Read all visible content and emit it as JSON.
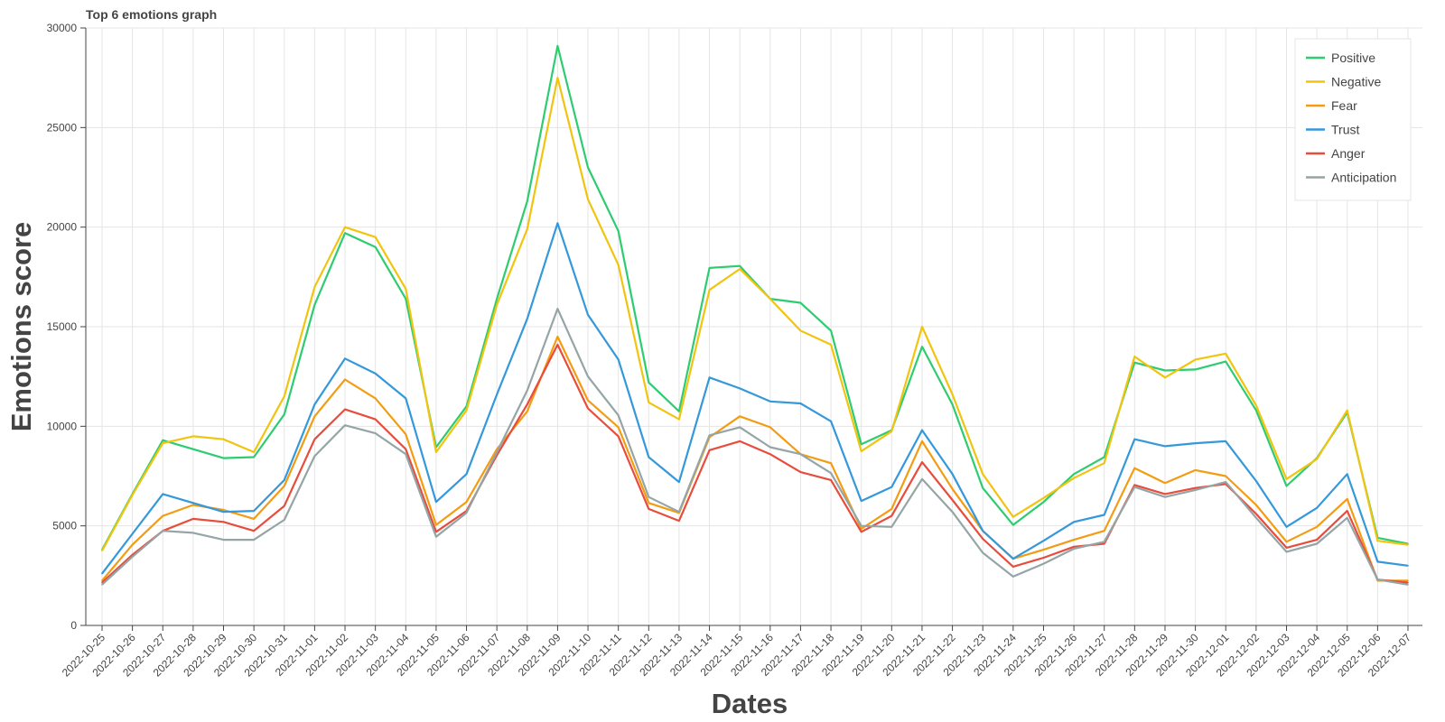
{
  "chart_data": {
    "type": "line",
    "title": "Top 6 emotions graph",
    "xlabel": "Dates",
    "ylabel": "Emotions score",
    "ylim": [
      0,
      30000
    ],
    "yticks": [
      0,
      5000,
      10000,
      15000,
      20000,
      25000,
      30000
    ],
    "grid": true,
    "legend_position": "top-right",
    "x": [
      "2022-10-25",
      "2022-10-26",
      "2022-10-27",
      "2022-10-28",
      "2022-10-29",
      "2022-10-30",
      "2022-10-31",
      "2022-11-01",
      "2022-11-02",
      "2022-11-03",
      "2022-11-04",
      "2022-11-05",
      "2022-11-06",
      "2022-11-07",
      "2022-11-08",
      "2022-11-09",
      "2022-11-10",
      "2022-11-11",
      "2022-11-12",
      "2022-11-13",
      "2022-11-14",
      "2022-11-15",
      "2022-11-16",
      "2022-11-17",
      "2022-11-18",
      "2022-11-19",
      "2022-11-20",
      "2022-11-21",
      "2022-11-22",
      "2022-11-23",
      "2022-11-24",
      "2022-11-25",
      "2022-11-26",
      "2022-11-27",
      "2022-11-28",
      "2022-11-29",
      "2022-11-30",
      "2022-12-01",
      "2022-12-02",
      "2022-12-03",
      "2022-12-04",
      "2022-12-05",
      "2022-12-06",
      "2022-12-07"
    ],
    "series": [
      {
        "name": "Positive",
        "color": "#2ecc71",
        "values": [
          3800,
          6600,
          9300,
          8850,
          8400,
          8450,
          10600,
          16100,
          19700,
          19000,
          16400,
          8950,
          11000,
          16400,
          21300,
          29100,
          23000,
          19800,
          12200,
          10750,
          17950,
          18050,
          16400,
          16200,
          14800,
          9100,
          9800,
          14000,
          11100,
          6900,
          5050,
          6200,
          7600,
          8450,
          13200,
          12800,
          12850,
          13250,
          10800,
          7000,
          8400,
          10700,
          4400,
          4100
        ]
      },
      {
        "name": "Negative",
        "color": "#f1c40f",
        "values": [
          3750,
          6550,
          9150,
          9500,
          9350,
          8700,
          11500,
          17000,
          20000,
          19500,
          16900,
          8700,
          10800,
          16100,
          19900,
          27500,
          21400,
          18100,
          11200,
          10350,
          16850,
          17900,
          16400,
          14800,
          14100,
          8750,
          9750,
          15000,
          11600,
          7600,
          5450,
          6400,
          7400,
          8150,
          13500,
          12450,
          13350,
          13650,
          11050,
          7350,
          8350,
          10800,
          4250,
          4050
        ]
      },
      {
        "name": "Fear",
        "color": "#f39c12",
        "values": [
          2250,
          4050,
          5500,
          6050,
          5800,
          5350,
          7000,
          10500,
          12350,
          11400,
          9600,
          5050,
          6200,
          8850,
          10750,
          14500,
          11300,
          9950,
          6150,
          5650,
          9450,
          10500,
          9950,
          8600,
          8150,
          4850,
          5850,
          9250,
          6850,
          4750,
          3350,
          3800,
          4300,
          4750,
          7900,
          7150,
          7800,
          7500,
          6050,
          4200,
          4950,
          6350,
          2250,
          2250
        ]
      },
      {
        "name": "Trust",
        "color": "#3498db",
        "values": [
          2600,
          4600,
          6600,
          6150,
          5700,
          5750,
          7300,
          11100,
          13400,
          12650,
          11400,
          6200,
          7600,
          11600,
          15400,
          20200,
          15600,
          13350,
          8450,
          7200,
          12450,
          11900,
          11250,
          11150,
          10250,
          6250,
          6950,
          9800,
          7600,
          4750,
          3350,
          4250,
          5200,
          5550,
          9350,
          9000,
          9150,
          9250,
          7250,
          4950,
          5900,
          7600,
          3200,
          3000
        ]
      },
      {
        "name": "Anger",
        "color": "#e74c3c",
        "values": [
          2150,
          3550,
          4750,
          5350,
          5200,
          4750,
          6000,
          9350,
          10850,
          10350,
          8850,
          4700,
          5750,
          8550,
          11100,
          14100,
          10900,
          9500,
          5850,
          5250,
          8800,
          9250,
          8600,
          7700,
          7300,
          4700,
          5500,
          8200,
          6300,
          4350,
          2950,
          3400,
          3950,
          4100,
          7050,
          6600,
          6900,
          7100,
          5600,
          3900,
          4300,
          5750,
          2300,
          2150
        ]
      },
      {
        "name": "Anticipation",
        "color": "#95a5a6",
        "values": [
          2050,
          3450,
          4750,
          4650,
          4300,
          4300,
          5300,
          8500,
          10050,
          9650,
          8600,
          4450,
          5650,
          8700,
          11800,
          15900,
          12500,
          10550,
          6450,
          5700,
          9550,
          9950,
          8950,
          8600,
          7650,
          5000,
          4950,
          7350,
          5700,
          3650,
          2450,
          3100,
          3850,
          4200,
          6950,
          6450,
          6800,
          7200,
          5400,
          3700,
          4100,
          5400,
          2300,
          2050
        ]
      }
    ]
  }
}
